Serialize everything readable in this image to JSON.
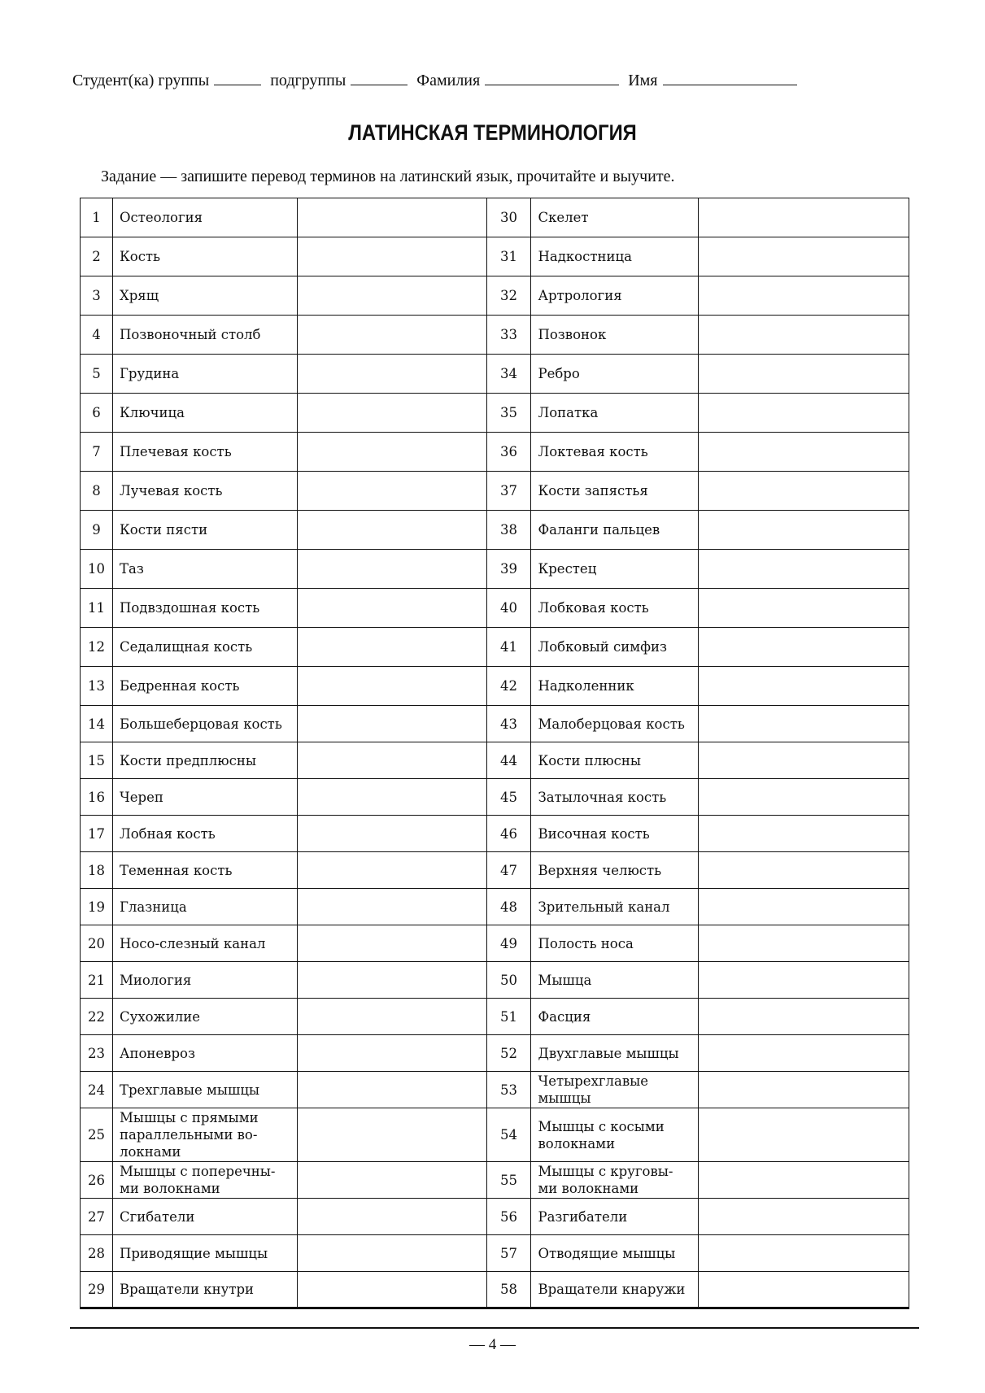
{
  "header": {
    "student_group_label": "Студент(ка) группы",
    "subgroup_label": "подгруппы",
    "surname_label": "Фамилия",
    "name_label": "Имя"
  },
  "title": "ЛАТИНСКАЯ ТЕРМИНОЛОГИЯ",
  "task": "Задание — запишите перевод терминов на латинский язык, прочитайте и выучите.",
  "rows": [
    {
      "n1": "1",
      "t1": "Остеология",
      "n2": "30",
      "t2": "Скелет"
    },
    {
      "n1": "2",
      "t1": "Кость",
      "n2": "31",
      "t2": "Надкостница"
    },
    {
      "n1": "3",
      "t1": "Хрящ",
      "n2": "32",
      "t2": "Артрология"
    },
    {
      "n1": "4",
      "t1": "Позвоночный столб",
      "n2": "33",
      "t2": "Позвонок"
    },
    {
      "n1": "5",
      "t1": "Грудина",
      "n2": "34",
      "t2": "Ребро"
    },
    {
      "n1": "6",
      "t1": "Ключица",
      "n2": "35",
      "t2": "Лопатка"
    },
    {
      "n1": "7",
      "t1": "Плечевая кость",
      "n2": "36",
      "t2": "Локтевая кость"
    },
    {
      "n1": "8",
      "t1": "Лучевая кость",
      "n2": "37",
      "t2": "Кости запястья"
    },
    {
      "n1": "9",
      "t1": "Кости пясти",
      "n2": "38",
      "t2": "Фаланги пальцев"
    },
    {
      "n1": "10",
      "t1": "Таз",
      "n2": "39",
      "t2": "Крестец"
    },
    {
      "n1": "11",
      "t1": "Подвздошная кость",
      "n2": "40",
      "t2": "Лобковая кость"
    },
    {
      "n1": "12",
      "t1": "Седалищная кость",
      "n2": "41",
      "t2": "Лобковый симфиз"
    },
    {
      "n1": "13",
      "t1": "Бедренная кость",
      "n2": "42",
      "t2": "Надколенник"
    },
    {
      "n1": "14",
      "t1": "Большеберцовая кость",
      "n2": "43",
      "t2": "Малоберцовая кость"
    },
    {
      "n1": "15",
      "t1": "Кости предплюсны",
      "n2": "44",
      "t2": "Кости плюсны"
    },
    {
      "n1": "16",
      "t1": "Череп",
      "n2": "45",
      "t2": "Затылочная кость"
    },
    {
      "n1": "17",
      "t1": "Лобная кость",
      "n2": "46",
      "t2": "Височная кость"
    },
    {
      "n1": "18",
      "t1": "Теменная кость",
      "n2": "47",
      "t2": "Верхняя челюсть"
    },
    {
      "n1": "19",
      "t1": "Глазница",
      "n2": "48",
      "t2": "Зрительный канал"
    },
    {
      "n1": "20",
      "t1": "Носо-слезный канал",
      "n2": "49",
      "t2": "Полость носа"
    },
    {
      "n1": "21",
      "t1": "Миология",
      "n2": "50",
      "t2": "Мышца"
    },
    {
      "n1": "22",
      "t1": "Сухожилие",
      "n2": "51",
      "t2": "Фасция"
    },
    {
      "n1": "23",
      "t1": "Апоневроз",
      "n2": "52",
      "t2": "Двухглавые мышцы"
    },
    {
      "n1": "24",
      "t1": "Трехглавые мышцы",
      "n2": "53",
      "t2": "Четырехглавые мышцы"
    },
    {
      "n1": "25",
      "t1": "Мышцы с прямыми параллельными во-локнами",
      "n2": "54",
      "t2": "Мышцы с косыми волокнами"
    },
    {
      "n1": "26",
      "t1": "Мышцы с поперечны-ми волокнами",
      "n2": "55",
      "t2": "Мышцы с круговы-ми волокнами"
    },
    {
      "n1": "27",
      "t1": "Сгибатели",
      "n2": "56",
      "t2": "Разгибатели"
    },
    {
      "n1": "28",
      "t1": "Приводящие мышцы",
      "n2": "57",
      "t2": "Отводящие мышцы"
    },
    {
      "n1": "29",
      "t1": "Вращатели кнутри",
      "n2": "58",
      "t2": "Вращатели кнаружи"
    }
  ],
  "page_number": "— 4 —"
}
